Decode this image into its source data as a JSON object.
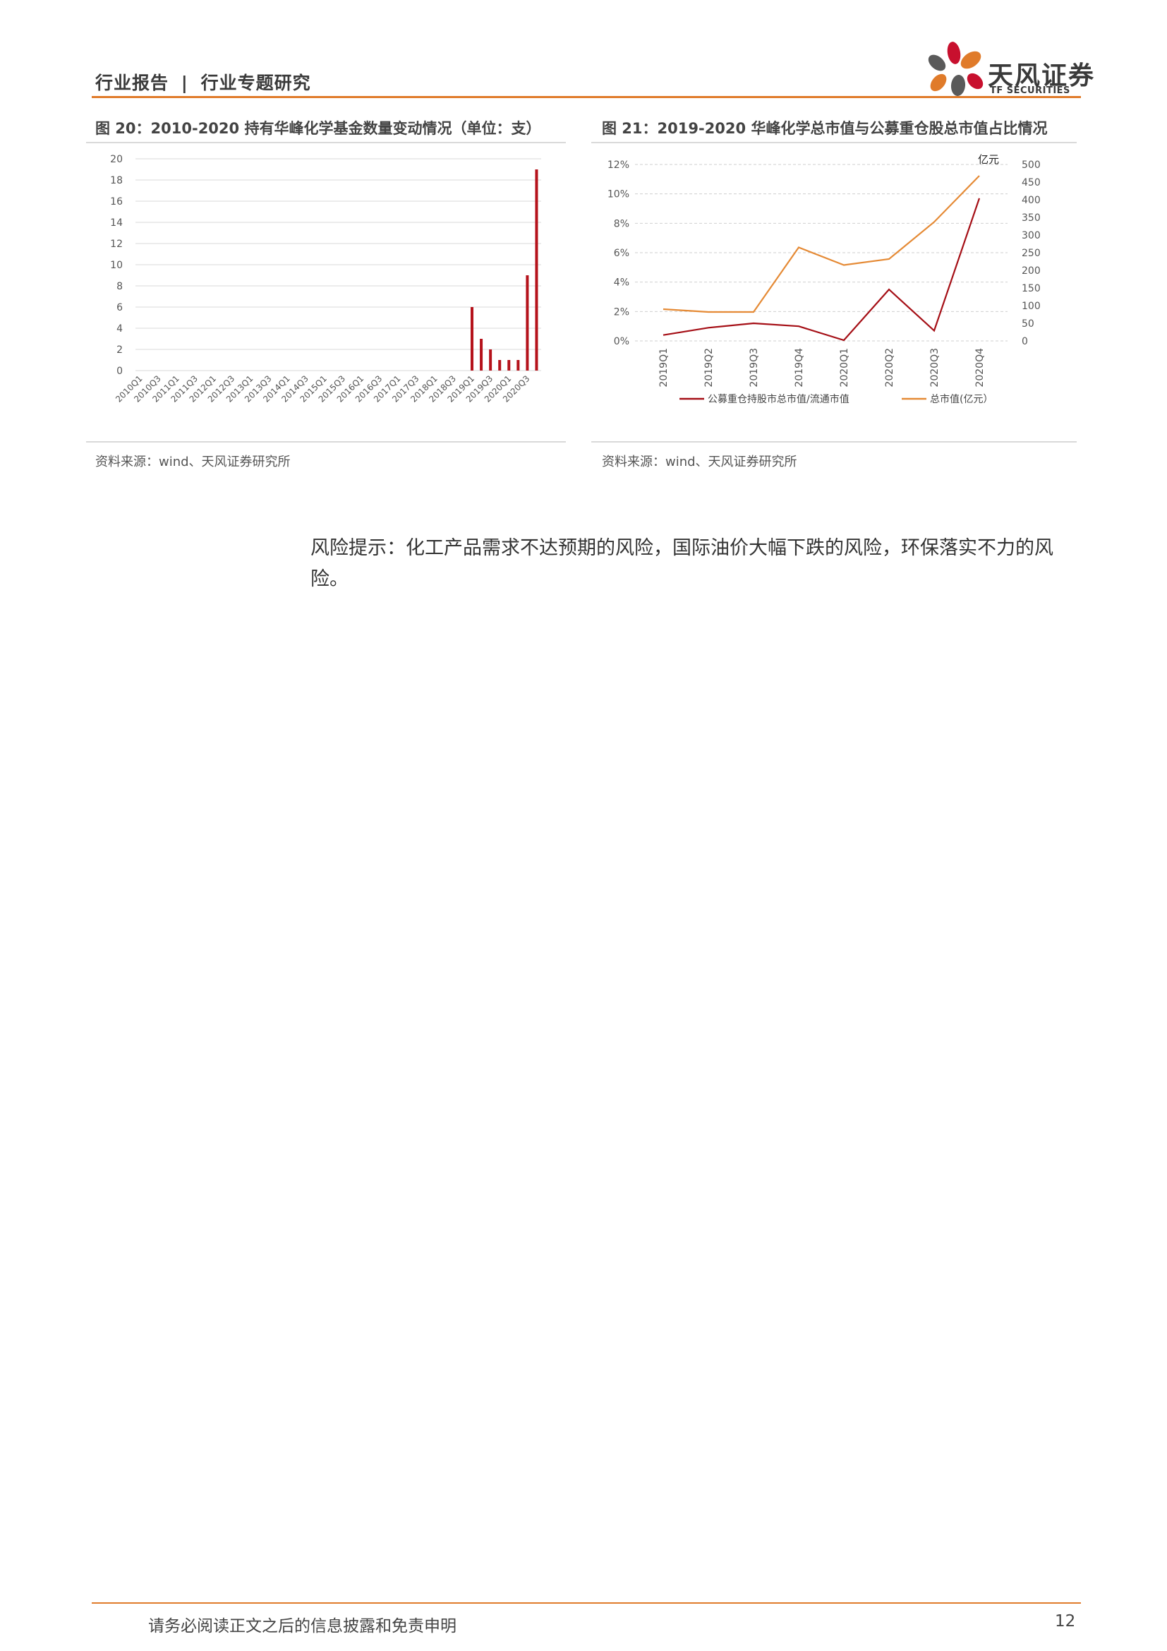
{
  "header": {
    "report_type": "行业报告",
    "separator": "|",
    "report_subtype": "行业专题研究",
    "logo_cn": "天风证券",
    "logo_en": "TF SECURITIES"
  },
  "figure20": {
    "title": "图 20：2010-2020 持有华峰化学基金数量变动情况（单位：支）",
    "source": "资料来源：wind、天风证券研究所"
  },
  "figure21": {
    "title": "图 21：2019-2020 华峰化学总市值与公募重仓股总市值占比情况",
    "source": "资料来源：wind、天风证券研究所"
  },
  "chart_data": [
    {
      "type": "bar",
      "color": "#b5121b",
      "y_ticks": [
        "0",
        "2",
        "4",
        "6",
        "8",
        "10",
        "12",
        "14",
        "16",
        "18",
        "20"
      ],
      "ylim": [
        0,
        20
      ],
      "categories": [
        "2010Q1",
        "2010Q2",
        "2010Q3",
        "2010Q4",
        "2011Q1",
        "2011Q2",
        "2011Q3",
        "2011Q4",
        "2012Q1",
        "2012Q2",
        "2012Q3",
        "2012Q4",
        "2013Q1",
        "2013Q2",
        "2013Q3",
        "2013Q4",
        "2014Q1",
        "2014Q2",
        "2014Q3",
        "2014Q4",
        "2015Q1",
        "2015Q2",
        "2015Q3",
        "2015Q4",
        "2016Q1",
        "2016Q2",
        "2016Q3",
        "2016Q4",
        "2017Q1",
        "2017Q2",
        "2017Q3",
        "2017Q4",
        "2018Q1",
        "2018Q2",
        "2018Q3",
        "2018Q4",
        "2019Q1",
        "2019Q2",
        "2019Q3",
        "2019Q4",
        "2020Q1",
        "2020Q2",
        "2020Q3",
        "2020Q4"
      ],
      "tick_labels": [
        "2010Q1",
        "2010Q3",
        "2011Q1",
        "2011Q3",
        "2012Q1",
        "2012Q3",
        "2013Q1",
        "2013Q3",
        "2014Q1",
        "2014Q3",
        "2015Q1",
        "2015Q3",
        "2016Q1",
        "2016Q3",
        "2017Q1",
        "2017Q3",
        "2018Q1",
        "2018Q3",
        "2019Q1",
        "2019Q3",
        "2020Q1",
        "2020Q3"
      ],
      "values": [
        0,
        0,
        0,
        0,
        0,
        0,
        0,
        0,
        0,
        0,
        0,
        0,
        0,
        0,
        0,
        0,
        0,
        0,
        0,
        0,
        0,
        0,
        0,
        0,
        0,
        0,
        0,
        0,
        0,
        0,
        0,
        0,
        0,
        0,
        0,
        0,
        6,
        3,
        2,
        1,
        1,
        1,
        9,
        19
      ],
      "grid": true
    },
    {
      "type": "line",
      "categories": [
        "2019Q1",
        "2019Q2",
        "2019Q3",
        "2019Q4",
        "2020Q1",
        "2020Q2",
        "2020Q3",
        "2020Q4"
      ],
      "y_left_ticks": [
        "0%",
        "2%",
        "4%",
        "6%",
        "8%",
        "10%",
        "12%"
      ],
      "y_left_range": [
        0,
        12
      ],
      "y_right_ticks": [
        "0",
        "50",
        "100",
        "150",
        "200",
        "250",
        "300",
        "350",
        "400",
        "450",
        "500"
      ],
      "y_right_range": [
        0,
        500
      ],
      "y_right_unit": "亿元",
      "series": [
        {
          "name": "公募重仓持股市总市值/流通市值",
          "axis": "left",
          "color": "#a50f16",
          "values": [
            0.4,
            0.9,
            1.2,
            1.0,
            0.05,
            3.5,
            0.7,
            9.7
          ]
        },
        {
          "name": "总市值(亿元）",
          "axis": "right",
          "color": "#e58a35",
          "values": [
            90,
            82,
            82,
            265,
            215,
            232,
            337,
            468
          ]
        }
      ],
      "legend_position": "bottom",
      "grid": "dashed"
    }
  ],
  "risk": {
    "text": "风险提示：化工产品需求不达预期的风险，国际油价大幅下跌的风险，环保落实不力的风险。"
  },
  "footer": {
    "disclaimer": "请务必阅读正文之后的信息披露和免责申明",
    "page": "12"
  }
}
